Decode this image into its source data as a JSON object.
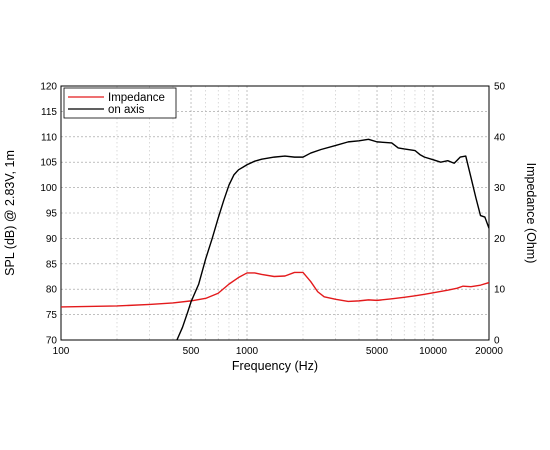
{
  "chart_data": {
    "type": "line",
    "xlabel": "Frequency (Hz)",
    "ylabel_left": "SPL (dB) @ 2.83V, 1m",
    "ylabel_right": "Impedance (Ohm)",
    "x_scale": "log",
    "xlim": [
      100,
      20000
    ],
    "ylim_left": [
      70,
      120
    ],
    "ylim_right": [
      0,
      50
    ],
    "x_ticks": [
      100,
      500,
      1000,
      5000,
      10000,
      20000
    ],
    "x_tick_labels": [
      "100",
      "500",
      "1000",
      "5000",
      "10000",
      "20000"
    ],
    "y_ticks_left": [
      70,
      75,
      80,
      85,
      90,
      95,
      100,
      105,
      110,
      115,
      120
    ],
    "y_tick_labels_left": [
      "70",
      "75",
      "80",
      "85",
      "90",
      "95",
      "100",
      "105",
      "110",
      "115",
      "120"
    ],
    "y_ticks_right": [
      0,
      10,
      20,
      30,
      40,
      50
    ],
    "y_tick_labels_right": [
      "0",
      "10",
      "20",
      "30",
      "40",
      "50"
    ],
    "grid": true,
    "legend_position": "top-left",
    "series": [
      {
        "name": "Impedance",
        "color": "#e31a1c",
        "axis": "right",
        "x": [
          100,
          200,
          300,
          400,
          500,
          600,
          700,
          800,
          900,
          1000,
          1100,
          1200,
          1400,
          1600,
          1800,
          2000,
          2200,
          2400,
          2600,
          3000,
          3500,
          4000,
          4500,
          5000,
          6000,
          7000,
          8000,
          9000,
          10000,
          12000,
          13500,
          14500,
          16000,
          18000,
          20000
        ],
        "y": [
          6.5,
          6.7,
          7.0,
          7.3,
          7.7,
          8.2,
          9.2,
          11.0,
          12.3,
          13.2,
          13.2,
          12.9,
          12.5,
          12.6,
          13.3,
          13.3,
          11.5,
          9.5,
          8.5,
          8.0,
          7.6,
          7.7,
          7.9,
          7.8,
          8.1,
          8.4,
          8.7,
          9.0,
          9.3,
          9.8,
          10.2,
          10.6,
          10.5,
          10.8,
          11.3
        ]
      },
      {
        "name": "on axis",
        "color": "#000000",
        "axis": "left",
        "x": [
          420,
          450,
          480,
          500,
          550,
          600,
          650,
          700,
          750,
          800,
          850,
          900,
          950,
          1000,
          1100,
          1200,
          1400,
          1600,
          1800,
          2000,
          2200,
          2500,
          3000,
          3500,
          4000,
          4500,
          5000,
          5500,
          6000,
          6500,
          7000,
          8000,
          8500,
          9000,
          10000,
          11000,
          12000,
          13000,
          14000,
          15000,
          16000,
          17000,
          18000,
          19000,
          20000
        ],
        "y": [
          70.0,
          72.5,
          75.5,
          77.5,
          81.0,
          86.0,
          90.0,
          94.0,
          97.5,
          100.5,
          102.5,
          103.5,
          104.0,
          104.5,
          105.2,
          105.6,
          106.0,
          106.2,
          106.0,
          106.0,
          106.8,
          107.5,
          108.3,
          109.0,
          109.2,
          109.5,
          109.0,
          108.9,
          108.8,
          107.8,
          107.6,
          107.3,
          106.5,
          106.0,
          105.5,
          105.0,
          105.3,
          104.8,
          106.0,
          106.2,
          102.0,
          98.0,
          94.5,
          94.2,
          92.0
        ]
      }
    ]
  }
}
